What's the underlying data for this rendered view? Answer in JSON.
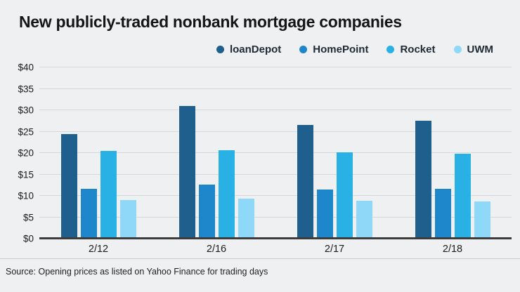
{
  "chart_data": {
    "type": "bar",
    "title": "New publicly-traded nonbank mortgage companies",
    "source": "Source: Opening prices as listed on Yahoo Finance for trading days",
    "categories": [
      "2/12",
      "2/16",
      "2/17",
      "2/18"
    ],
    "series": [
      {
        "name": "loanDepot",
        "color": "#1e5f8e",
        "values": [
          24.5,
          31.0,
          26.5,
          27.5
        ]
      },
      {
        "name": "HomePoint",
        "color": "#1e86ca",
        "values": [
          11.6,
          12.6,
          11.5,
          11.7
        ]
      },
      {
        "name": "Rocket",
        "color": "#29b1e6",
        "values": [
          20.5,
          20.6,
          20.2,
          19.9
        ]
      },
      {
        "name": "UWM",
        "color": "#8fd8f8",
        "values": [
          9.0,
          9.3,
          8.9,
          8.7
        ]
      }
    ],
    "xlabel": "",
    "ylabel": "",
    "ylim": [
      0,
      40
    ],
    "ytick_step": 5,
    "ytick_prefix": "$",
    "legend_position": "top-right",
    "grid": true,
    "background_color": "#eef0f2",
    "gridline_color": "#d6d8db",
    "baseline_color": "#3c3c3c"
  }
}
